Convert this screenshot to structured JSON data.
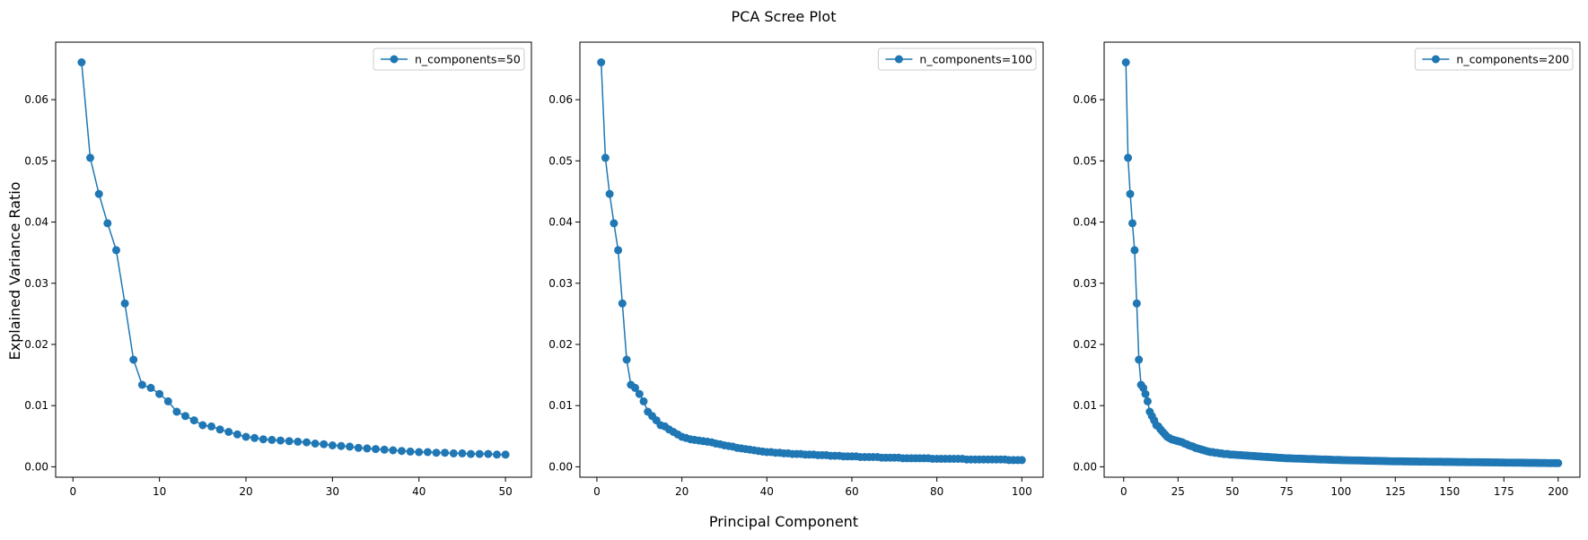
{
  "suptitle": "PCA Scree Plot",
  "supxlabel": "Principal Component",
  "supylabel": "Explained Variance Ratio",
  "colors": {
    "series": "#1f77b4",
    "axes": "#000000",
    "background": "#ffffff"
  },
  "chart_data": [
    {
      "type": "line",
      "legend": "n_components=50",
      "legend_position": "top-right",
      "grid": false,
      "markers": true,
      "xlim": [
        -2,
        53
      ],
      "ylim": [
        -0.0017,
        0.0694
      ],
      "xticks": [
        0,
        10,
        20,
        30,
        40,
        50
      ],
      "yticks": [
        0.0,
        0.01,
        0.02,
        0.03,
        0.04,
        0.05,
        0.06
      ],
      "n": 50,
      "values": [
        0.0661,
        0.0505,
        0.0446,
        0.0398,
        0.0354,
        0.0267,
        0.0175,
        0.0134,
        0.0129,
        0.0119,
        0.0107,
        0.009,
        0.0083,
        0.0076,
        0.0068,
        0.0066,
        0.0061,
        0.0057,
        0.0053,
        0.0049,
        0.0047,
        0.0045,
        0.0044,
        0.0043,
        0.0042,
        0.0041,
        0.004,
        0.0038,
        0.0037,
        0.0035,
        0.0034,
        0.0033,
        0.0031,
        0.003,
        0.0029,
        0.0028,
        0.0027,
        0.0026,
        0.0025,
        0.0024,
        0.0024,
        0.0023,
        0.0023,
        0.0022,
        0.0022,
        0.0021,
        0.0021,
        0.0021,
        0.002,
        0.002
      ]
    },
    {
      "type": "line",
      "legend": "n_components=100",
      "legend_position": "top-right",
      "grid": false,
      "markers": true,
      "xlim": [
        -4,
        105
      ],
      "ylim": [
        -0.0017,
        0.0694
      ],
      "xticks": [
        0,
        20,
        40,
        60,
        80,
        100
      ],
      "yticks": [
        0.0,
        0.01,
        0.02,
        0.03,
        0.04,
        0.05,
        0.06
      ],
      "n": 100,
      "values": [
        0.0661,
        0.0505,
        0.0446,
        0.0398,
        0.0354,
        0.0267,
        0.0175,
        0.0134,
        0.0129,
        0.0119,
        0.0107,
        0.009,
        0.0083,
        0.0076,
        0.0068,
        0.0066,
        0.0061,
        0.0057,
        0.0053,
        0.0049,
        0.0047,
        0.0045,
        0.0044,
        0.0043,
        0.0042,
        0.0041,
        0.004,
        0.0038,
        0.0037,
        0.0035,
        0.0034,
        0.0033,
        0.0031,
        0.003,
        0.0029,
        0.0028,
        0.0027,
        0.0026,
        0.0025,
        0.0024,
        0.0024,
        0.0023,
        0.0023,
        0.0022,
        0.0022,
        0.0021,
        0.0021,
        0.0021,
        0.002,
        0.002,
        0.002,
        0.0019,
        0.0019,
        0.0019,
        0.0018,
        0.0018,
        0.0018,
        0.0017,
        0.0017,
        0.0017,
        0.0017,
        0.0016,
        0.0016,
        0.0016,
        0.0016,
        0.0016,
        0.0015,
        0.0015,
        0.0015,
        0.0015,
        0.0015,
        0.0014,
        0.0014,
        0.0014,
        0.0014,
        0.0014,
        0.0014,
        0.0014,
        0.0013,
        0.0013,
        0.0013,
        0.0013,
        0.0013,
        0.0013,
        0.0013,
        0.0013,
        0.0012,
        0.0012,
        0.0012,
        0.0012,
        0.0012,
        0.0012,
        0.0012,
        0.0012,
        0.0012,
        0.0012,
        0.0011,
        0.0011,
        0.0011,
        0.0011
      ]
    },
    {
      "type": "line",
      "legend": "n_components=200",
      "legend_position": "top-right",
      "grid": false,
      "markers": true,
      "xlim": [
        -9,
        210
      ],
      "ylim": [
        -0.0017,
        0.0694
      ],
      "xticks": [
        0,
        25,
        50,
        75,
        100,
        125,
        150,
        175,
        200
      ],
      "yticks": [
        0.0,
        0.01,
        0.02,
        0.03,
        0.04,
        0.05,
        0.06
      ],
      "n": 200,
      "head_values": [
        0.0661,
        0.0505,
        0.0446,
        0.0398,
        0.0354,
        0.0267,
        0.0175,
        0.0134,
        0.0129,
        0.0119,
        0.0107,
        0.009,
        0.0083,
        0.0076,
        0.0068,
        0.0066,
        0.0061,
        0.0057,
        0.0053,
        0.0049,
        0.0047,
        0.0045,
        0.0044,
        0.0043,
        0.0042,
        0.0041,
        0.004,
        0.0038,
        0.0037,
        0.0035,
        0.0034,
        0.0033,
        0.0031,
        0.003,
        0.0029,
        0.0028,
        0.0027,
        0.0026,
        0.0025,
        0.0024,
        0.0024,
        0.0023,
        0.0023,
        0.0022,
        0.0022,
        0.0021,
        0.0021,
        0.0021,
        0.002,
        0.002
      ],
      "tail_anchors": [
        [
          50,
          0.002
        ],
        [
          75,
          0.0014
        ],
        [
          100,
          0.0011
        ],
        [
          125,
          0.0009
        ],
        [
          150,
          0.0008
        ],
        [
          175,
          0.0007
        ],
        [
          200,
          0.0006
        ]
      ]
    }
  ]
}
